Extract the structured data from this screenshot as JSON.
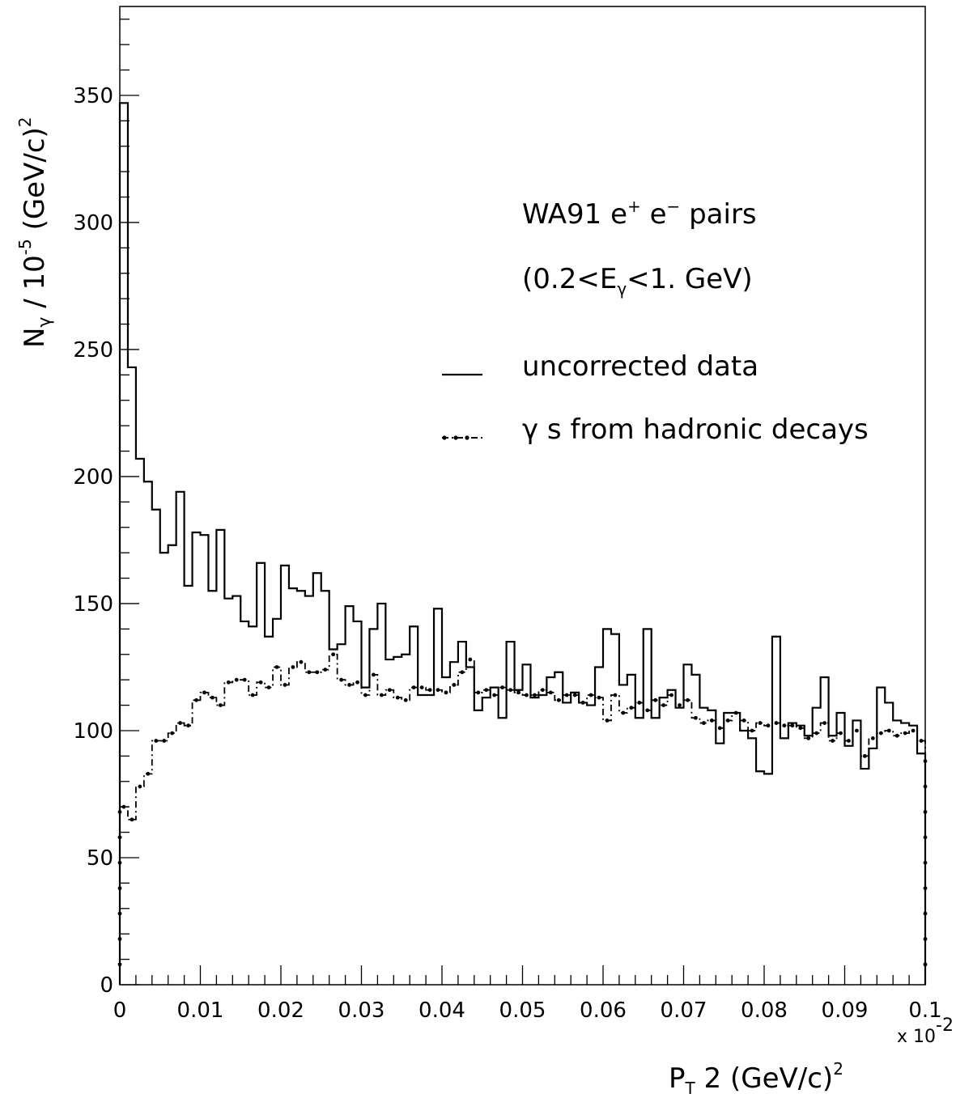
{
  "chart_data": {
    "type": "histogram",
    "title": "",
    "xlabel": "P",
    "xlabel_sub": "T",
    "xlabel_rest": " 2 (GeV/c)",
    "xlabel_sup": "2",
    "x_multiplier": "x 10",
    "x_multiplier_exp": "-2",
    "ylabel": "N",
    "ylabel_sub": "γ",
    "ylabel_mid": " / 10",
    "ylabel_exp": "-5",
    "ylabel_rest": "  (GeV/c)",
    "ylabel_sup": "2",
    "xlim": [
      0,
      0.1
    ],
    "ylim": [
      0,
      385
    ],
    "x_ticks": [
      "0",
      "0.01",
      "0.02",
      "0.03",
      "0.04",
      "0.05",
      "0.06",
      "0.07",
      "0.08",
      "0.09",
      "0.1"
    ],
    "x_tick_values": [
      0,
      0.01,
      0.02,
      0.03,
      0.04,
      0.05,
      0.06,
      0.07,
      0.08,
      0.09,
      0.1
    ],
    "y_ticks": [
      "0",
      "50",
      "100",
      "150",
      "200",
      "250",
      "300",
      "350"
    ],
    "y_tick_values": [
      0,
      50,
      100,
      150,
      200,
      250,
      300,
      350
    ],
    "grid": false,
    "bin_width": 0.001,
    "annotations": {
      "line1_a": "WA91 e",
      "line1_sup1": "+",
      "line1_b": " e",
      "line1_sup2": "−",
      "line1_c": " pairs",
      "line2_a": "(0.2<E",
      "line2_sub": "γ",
      "line2_b": "<1. GeV)"
    },
    "legend_position": "right",
    "series": [
      {
        "name": "uncorrected data",
        "style": "solid",
        "values": [
          347,
          243,
          207,
          198,
          187,
          170,
          173,
          194,
          157,
          178,
          177,
          155,
          179,
          152,
          153,
          143,
          141,
          166,
          137,
          144,
          165,
          156,
          155,
          153,
          162,
          155,
          132,
          134,
          149,
          143,
          117,
          140,
          150,
          128,
          129,
          130,
          141,
          114,
          114,
          148,
          121,
          127,
          135,
          125,
          108,
          113,
          117,
          105,
          135,
          116,
          126,
          113,
          114,
          121,
          123,
          111,
          115,
          111,
          110,
          125,
          140,
          138,
          118,
          122,
          105,
          140,
          105,
          113,
          116,
          109,
          126,
          122,
          109,
          108,
          95,
          107,
          107,
          100,
          97,
          84,
          83,
          137,
          97,
          103,
          102,
          98,
          109,
          121,
          98,
          107,
          94,
          104,
          85,
          93,
          117,
          111,
          104,
          103,
          102,
          91
        ]
      },
      {
        "name": "γ s from hadronic decays",
        "style": "dashdot",
        "values": [
          70,
          65,
          78,
          83,
          96,
          96,
          99,
          103,
          102,
          112,
          115,
          113,
          110,
          119,
          120,
          120,
          114,
          119,
          117,
          125,
          118,
          125,
          127,
          123,
          123,
          124,
          130,
          120,
          118,
          119,
          114,
          122,
          114,
          116,
          113,
          112,
          117,
          117,
          116,
          116,
          115,
          118,
          123,
          128,
          115,
          116,
          114,
          117,
          116,
          115,
          114,
          114,
          116,
          115,
          112,
          114,
          114,
          111,
          114,
          113,
          104,
          114,
          107,
          109,
          111,
          108,
          112,
          110,
          114,
          110,
          112,
          105,
          103,
          104,
          101,
          104,
          107,
          104,
          100,
          103,
          102,
          103,
          102,
          102,
          101,
          97,
          99,
          103,
          96,
          99,
          96,
          100,
          90,
          97,
          99,
          100,
          98,
          99,
          100,
          96
        ]
      }
    ]
  }
}
